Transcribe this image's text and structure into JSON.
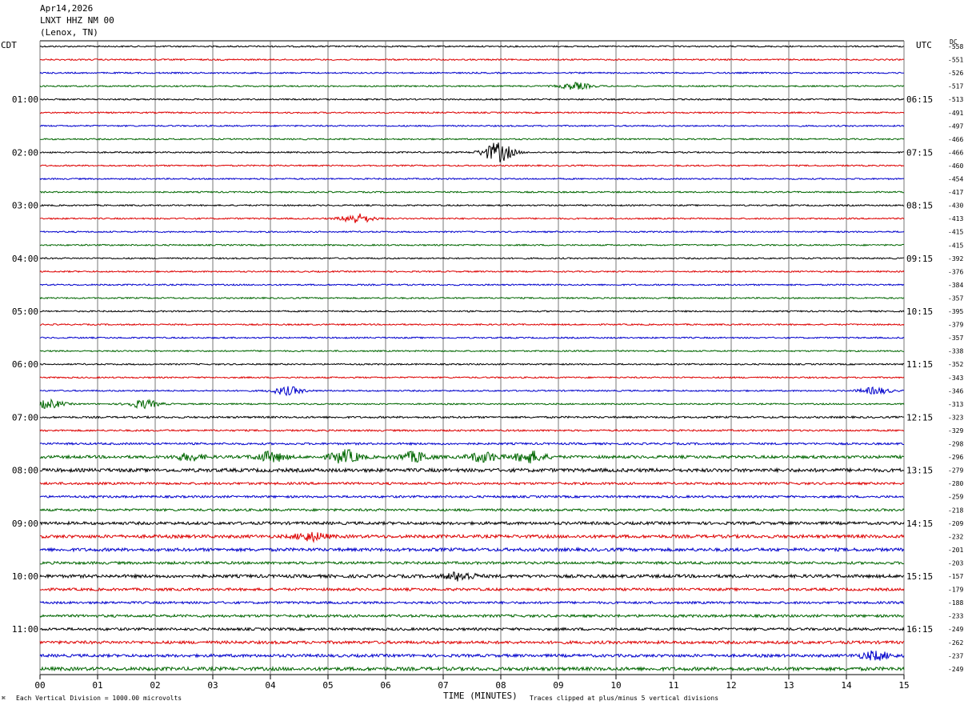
{
  "header": {
    "date": "Apr14,2026",
    "station": "LNXT HHZ NM 00",
    "location": "(Lenox, TN)"
  },
  "left_tz": "CDT",
  "right_tz": "UTC",
  "dc_label": "DC",
  "footer": {
    "scale": "Each Vertical Division = 1000.00 microvolts",
    "clip": "Traces clipped at plus/minus 5 vertical divisions",
    "mark": "⌘"
  },
  "chart_data": {
    "type": "line",
    "title": "",
    "xlabel": "TIME (MINUTES)",
    "ylabel": "",
    "xlim": [
      0,
      15
    ],
    "x_ticks": [
      "00",
      "01",
      "02",
      "03",
      "04",
      "05",
      "06",
      "07",
      "08",
      "09",
      "10",
      "11",
      "12",
      "13",
      "14",
      "15"
    ],
    "grid": "vertical lines at every minute",
    "rows_per_hour": 4,
    "row_colors": [
      "#000000",
      "#dd0000",
      "#0000cc",
      "#006600"
    ],
    "left_hour_labels": [
      "01:00",
      "02:00",
      "03:00",
      "04:00",
      "05:00",
      "06:00",
      "07:00",
      "08:00",
      "09:00",
      "10:00",
      "11:00"
    ],
    "right_hour_labels": [
      "06:15",
      "07:15",
      "08:15",
      "09:15",
      "10:15",
      "11:15",
      "12:15",
      "13:15",
      "14:15",
      "15:15",
      "16:15"
    ],
    "dc_offsets": [
      -558,
      -551,
      -526,
      -517,
      -513,
      -491,
      -497,
      -466,
      -466,
      -460,
      -454,
      -417,
      -430,
      -413,
      -415,
      -415,
      -392,
      -376,
      -384,
      -357,
      -395,
      -379,
      -357,
      -338,
      -352,
      -343,
      -346,
      -313,
      -323,
      -329,
      -298,
      -296,
      -279,
      -280,
      -259,
      -218,
      -209,
      -232,
      -201,
      -203,
      -157,
      -179,
      -188,
      -233,
      -249,
      -262,
      -237,
      -249
    ],
    "noise_level_per_row": [
      1,
      1,
      1,
      1,
      1,
      1,
      1,
      1,
      1,
      1,
      1,
      1,
      1,
      1,
      1,
      1,
      1,
      1,
      1,
      1,
      1,
      1,
      1,
      1,
      1,
      1,
      1,
      1,
      1.3,
      1.2,
      1.4,
      2,
      2.4,
      1.6,
      1.5,
      1.6,
      2,
      2.2,
      2.2,
      1.8,
      2.2,
      1.8,
      1.6,
      1.8,
      1.8,
      2,
      2,
      2.4
    ],
    "events": [
      {
        "row": 3,
        "minute": 9.3,
        "amplitude": 4
      },
      {
        "row": 8,
        "minute": 7.95,
        "amplitude": 12
      },
      {
        "row": 13,
        "minute": 5.5,
        "amplitude": 6
      },
      {
        "row": 26,
        "minute": 4.3,
        "amplitude": 5
      },
      {
        "row": 26,
        "minute": 14.5,
        "amplitude": 4
      },
      {
        "row": 27,
        "minute": 0.15,
        "amplitude": 5
      },
      {
        "row": 27,
        "minute": 1.8,
        "amplitude": 5
      },
      {
        "row": 31,
        "minute": 2.6,
        "amplitude": 4
      },
      {
        "row": 31,
        "minute": 4.0,
        "amplitude": 6
      },
      {
        "row": 31,
        "minute": 5.3,
        "amplitude": 8
      },
      {
        "row": 31,
        "minute": 6.5,
        "amplitude": 6
      },
      {
        "row": 31,
        "minute": 7.7,
        "amplitude": 6
      },
      {
        "row": 31,
        "minute": 8.5,
        "amplitude": 7
      },
      {
        "row": 37,
        "minute": 4.7,
        "amplitude": 5
      },
      {
        "row": 40,
        "minute": 7.3,
        "amplitude": 5
      },
      {
        "row": 46,
        "minute": 14.5,
        "amplitude": 5
      }
    ]
  }
}
